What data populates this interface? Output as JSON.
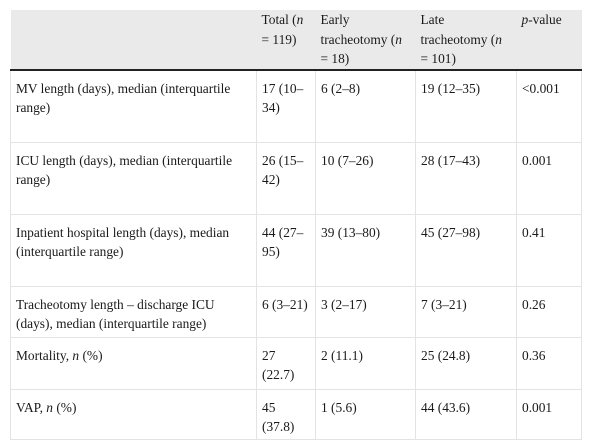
{
  "table": {
    "headers": [
      {
        "pre": "",
        "em": "",
        "post": ""
      },
      {
        "pre": "Total (",
        "em": "n",
        "post": " = 119)"
      },
      {
        "pre": "Early tracheotomy (",
        "em": "n",
        "post": " = 18)"
      },
      {
        "pre": "Late tracheotomy (",
        "em": "n",
        "post": " = 101)"
      },
      {
        "pre": "",
        "em": "p",
        "post": "-value"
      }
    ],
    "rows": [
      {
        "label": {
          "pre": "MV length (days), median (interquartile range)",
          "em": "",
          "post": ""
        },
        "total": "17 (10–34)",
        "early": "6 (2–8)",
        "late": "19 (12–35)",
        "p": "<0.001"
      },
      {
        "label": {
          "pre": "ICU length (days), median (interquartile range)",
          "em": "",
          "post": ""
        },
        "total": "26 (15–42)",
        "early": "10 (7–26)",
        "late": "28 (17–43)",
        "p": "0.001"
      },
      {
        "label": {
          "pre": "Inpatient hospital length (days), median (interquartile range)",
          "em": "",
          "post": ""
        },
        "total": "44 (27–95)",
        "early": "39 (13–80)",
        "late": "45 (27–98)",
        "p": "0.41"
      },
      {
        "label": {
          "pre": "Tracheotomy length – discharge ICU (days), median (interquartile range)",
          "em": "",
          "post": ""
        },
        "total": "6 (3–21)",
        "early": "3 (2–17)",
        "late": "7 (3–21)",
        "p": "0.26"
      },
      {
        "label": {
          "pre": "Mortality, ",
          "em": "n",
          "post": " (%)"
        },
        "total": "27 (22.7)",
        "early": "2 (11.1)",
        "late": "25 (24.8)",
        "p": "0.36"
      },
      {
        "label": {
          "pre": "VAP, ",
          "em": "n",
          "post": " (%)"
        },
        "total": "45 (37.8)",
        "early": "1 (5.6)",
        "late": "44 (43.6)",
        "p": "0.001"
      }
    ]
  }
}
